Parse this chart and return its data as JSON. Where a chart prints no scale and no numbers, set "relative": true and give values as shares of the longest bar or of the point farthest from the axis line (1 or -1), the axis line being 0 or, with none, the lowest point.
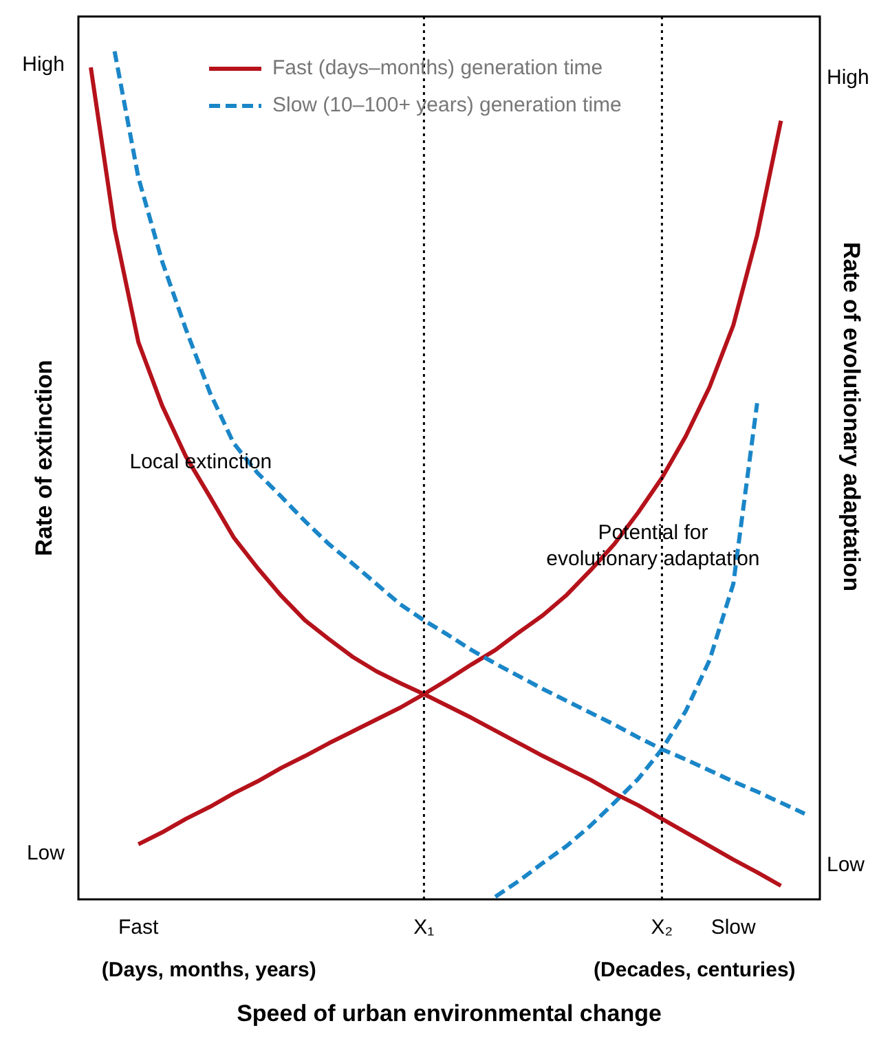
{
  "chart_data": {
    "type": "line",
    "relative": true,
    "xlabel": "Speed of urban environmental change",
    "ylabel": "Rate of extinction",
    "y2label": "Rate of evolutionary adaptation",
    "categories": [
      null,
      null,
      "Fast",
      null,
      null,
      null,
      null,
      null,
      null,
      null,
      null,
      null,
      null,
      null,
      "X₁",
      null,
      null,
      null,
      null,
      null,
      null,
      null,
      null,
      null,
      "X₂",
      null,
      null,
      "Slow",
      null,
      null,
      null
    ],
    "series": [
      {
        "name": "Fast (days–months) generation time",
        "color": "#b5121b",
        "line_style": "solid",
        "values": [
          0.981,
          0.791,
          0.657,
          0.582,
          0.522,
          0.475,
          0.427,
          0.391,
          0.358,
          0.329,
          0.307,
          0.286,
          0.269,
          0.255,
          0.242,
          0.228,
          0.214,
          0.199,
          0.184,
          0.169,
          0.155,
          0.141,
          0.125,
          0.111,
          0.095,
          0.079,
          0.063,
          0.047,
          0.032,
          0.016,
          null
        ]
      },
      {
        "name": "Slow (10–100+ years) generation time",
        "color": "#1a86c8",
        "line_style": "dashed",
        "values": [
          null,
          1.0,
          0.851,
          0.752,
          0.672,
          0.598,
          0.538,
          0.503,
          0.475,
          0.446,
          0.419,
          0.396,
          0.372,
          0.348,
          0.329,
          0.312,
          0.294,
          0.278,
          0.263,
          0.248,
          0.234,
          0.22,
          0.206,
          0.191,
          0.177,
          0.165,
          0.152,
          0.139,
          0.127,
          0.114,
          0.101
        ]
      },
      {
        "color": "#b5121b",
        "line_style": "solid",
        "values": [
          null,
          null,
          0.065,
          0.079,
          0.095,
          0.109,
          0.125,
          0.139,
          0.155,
          0.169,
          0.184,
          0.198,
          0.212,
          0.226,
          0.242,
          0.259,
          0.277,
          0.294,
          0.315,
          0.335,
          0.359,
          0.388,
          0.419,
          0.456,
          0.497,
          0.546,
          0.604,
          0.677,
          0.783,
          0.918,
          null
        ]
      },
      {
        "color": "#1a86c8",
        "line_style": "dashed",
        "values": [
          null,
          null,
          null,
          null,
          null,
          null,
          null,
          null,
          null,
          null,
          null,
          null,
          null,
          null,
          null,
          null,
          null,
          0.003,
          0.022,
          0.043,
          0.063,
          0.087,
          0.114,
          0.142,
          0.177,
          0.222,
          0.282,
          0.372,
          0.585,
          null,
          null
        ]
      }
    ],
    "ref_lines": [
      {
        "axis": "x",
        "value": "X₁",
        "color": "#000000",
        "line_style": "dotted"
      },
      {
        "axis": "x",
        "value": "X₂",
        "color": "#000000",
        "line_style": "dotted"
      }
    ],
    "annotations": [
      "High",
      "Low",
      "High",
      "Low",
      "(Days, months, years)",
      "(Decades, centuries)",
      "Local extinction",
      "Potential for\nevolutionary adaptation"
    ],
    "legend": "top",
    "marker": "none"
  }
}
